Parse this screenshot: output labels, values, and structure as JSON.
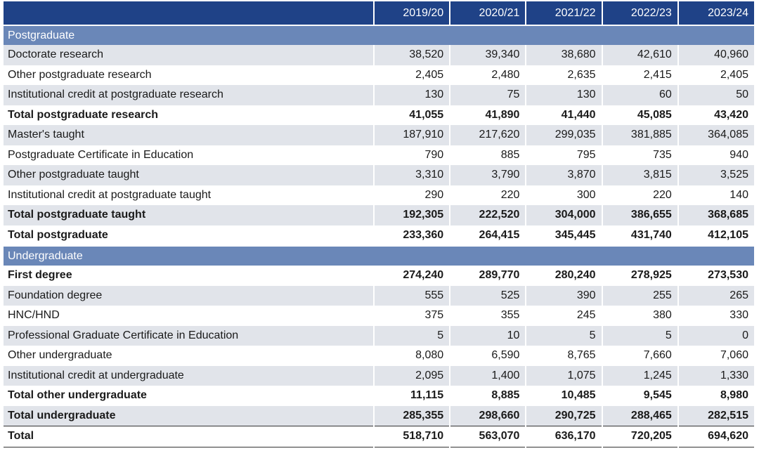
{
  "columns": [
    "2019/20",
    "2020/21",
    "2021/22",
    "2022/23",
    "2023/24"
  ],
  "sections": [
    {
      "title": "Postgraduate",
      "rows": [
        {
          "label": "Doctorate research",
          "values": [
            "38,520",
            "39,340",
            "38,680",
            "42,610",
            "40,960"
          ],
          "bold": false
        },
        {
          "label": "Other postgraduate research",
          "values": [
            "2,405",
            "2,480",
            "2,635",
            "2,415",
            "2,405"
          ],
          "bold": false
        },
        {
          "label": "Institutional credit at postgraduate research",
          "values": [
            "130",
            "75",
            "130",
            "60",
            "50"
          ],
          "bold": false
        },
        {
          "label": "Total postgraduate research",
          "values": [
            "41,055",
            "41,890",
            "41,440",
            "45,085",
            "43,420"
          ],
          "bold": true
        },
        {
          "label": "Master's taught",
          "values": [
            "187,910",
            "217,620",
            "299,035",
            "381,885",
            "364,085"
          ],
          "bold": false
        },
        {
          "label": "Postgraduate Certificate in Education",
          "values": [
            "790",
            "885",
            "795",
            "735",
            "940"
          ],
          "bold": false
        },
        {
          "label": "Other postgraduate taught",
          "values": [
            "3,310",
            "3,790",
            "3,870",
            "3,815",
            "3,525"
          ],
          "bold": false
        },
        {
          "label": "Institutional credit at postgraduate taught",
          "values": [
            "290",
            "220",
            "300",
            "220",
            "140"
          ],
          "bold": false
        },
        {
          "label": "Total postgraduate taught",
          "values": [
            "192,305",
            "222,520",
            "304,000",
            "386,655",
            "368,685"
          ],
          "bold": true
        },
        {
          "label": "Total postgraduate",
          "values": [
            "233,360",
            "264,415",
            "345,445",
            "431,740",
            "412,105"
          ],
          "bold": true
        }
      ]
    },
    {
      "title": "Undergraduate",
      "rows": [
        {
          "label": "First degree",
          "values": [
            "274,240",
            "289,770",
            "280,240",
            "278,925",
            "273,530"
          ],
          "bold": true
        },
        {
          "label": "Foundation degree",
          "values": [
            "555",
            "525",
            "390",
            "255",
            "265"
          ],
          "bold": false
        },
        {
          "label": "HNC/HND",
          "values": [
            "375",
            "355",
            "245",
            "380",
            "330"
          ],
          "bold": false
        },
        {
          "label": "Professional Graduate Certificate in Education",
          "values": [
            "5",
            "10",
            "5",
            "5",
            "0"
          ],
          "bold": false
        },
        {
          "label": "Other undergraduate",
          "values": [
            "8,080",
            "6,590",
            "8,765",
            "7,660",
            "7,060"
          ],
          "bold": false
        },
        {
          "label": "Institutional credit at undergraduate",
          "values": [
            "2,095",
            "1,400",
            "1,075",
            "1,245",
            "1,330"
          ],
          "bold": false
        },
        {
          "label": "Total other undergraduate",
          "values": [
            "11,115",
            "8,885",
            "10,485",
            "9,545",
            "8,980"
          ],
          "bold": true
        },
        {
          "label": "Total undergraduate",
          "values": [
            "285,355",
            "298,660",
            "290,725",
            "288,465",
            "282,515"
          ],
          "bold": true
        }
      ]
    }
  ],
  "total": {
    "label": "Total",
    "values": [
      "518,710",
      "563,070",
      "636,170",
      "720,205",
      "694,620"
    ]
  },
  "colors": {
    "header": "#1f4287",
    "section": "#6a87b8",
    "stripe": "#e1e4ea"
  }
}
